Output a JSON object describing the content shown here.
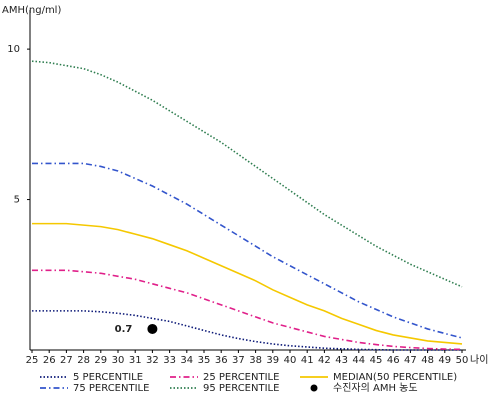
{
  "chart_data": {
    "type": "line",
    "y_label": "AMH(ng/ml)",
    "x_label": "나이",
    "x": [
      25,
      26,
      27,
      28,
      29,
      30,
      31,
      32,
      33,
      34,
      35,
      36,
      37,
      38,
      39,
      40,
      41,
      42,
      43,
      44,
      45,
      46,
      47,
      48,
      49,
      50
    ],
    "xlim": [
      25,
      50
    ],
    "ylim": [
      0,
      11.3
    ],
    "yticks": [
      5,
      10
    ],
    "series": [
      {
        "name": "5 PERCENTILE",
        "color": "#0d1a78",
        "style": "dotted",
        "values": [
          1.3,
          1.3,
          1.3,
          1.3,
          1.27,
          1.22,
          1.15,
          1.05,
          0.95,
          0.8,
          0.65,
          0.5,
          0.38,
          0.28,
          0.2,
          0.14,
          0.1,
          0.06,
          0.04,
          0.02,
          0.01,
          0,
          0,
          0,
          0,
          0
        ]
      },
      {
        "name": "75 PERCENTILE",
        "color": "#3355cc",
        "style": "dashdot",
        "values": [
          6.2,
          6.2,
          6.2,
          6.2,
          6.1,
          5.95,
          5.7,
          5.45,
          5.15,
          4.85,
          4.5,
          4.15,
          3.8,
          3.45,
          3.1,
          2.8,
          2.5,
          2.2,
          1.9,
          1.6,
          1.35,
          1.1,
          0.9,
          0.7,
          0.55,
          0.4
        ]
      },
      {
        "name": "25 PERCENTILE",
        "color": "#e0208a",
        "style": "dashdot",
        "values": [
          2.65,
          2.65,
          2.65,
          2.6,
          2.55,
          2.45,
          2.35,
          2.2,
          2.05,
          1.9,
          1.7,
          1.5,
          1.3,
          1.1,
          0.9,
          0.75,
          0.6,
          0.45,
          0.35,
          0.25,
          0.18,
          0.12,
          0.08,
          0.05,
          0.03,
          0.02
        ]
      },
      {
        "name": "95 PERCENTILE",
        "color": "#2e7d4f",
        "style": "dotted",
        "values": [
          9.6,
          9.55,
          9.45,
          9.35,
          9.15,
          8.9,
          8.6,
          8.3,
          7.95,
          7.6,
          7.25,
          6.9,
          6.5,
          6.1,
          5.7,
          5.3,
          4.9,
          4.5,
          4.15,
          3.8,
          3.45,
          3.15,
          2.85,
          2.6,
          2.35,
          2.1
        ]
      },
      {
        "name": "MEDIAN(50 PERCENTILE)",
        "color": "#f5c800",
        "style": "solid",
        "values": [
          4.2,
          4.2,
          4.2,
          4.15,
          4.1,
          4.0,
          3.85,
          3.7,
          3.5,
          3.3,
          3.05,
          2.8,
          2.55,
          2.3,
          2.0,
          1.75,
          1.5,
          1.3,
          1.05,
          0.85,
          0.65,
          0.5,
          0.4,
          0.3,
          0.25,
          0.2
        ]
      }
    ],
    "point": {
      "name": "수진자의 AMH 농도",
      "color": "#000000",
      "x": 32,
      "value": 0.7,
      "value_label": "0.7"
    }
  }
}
